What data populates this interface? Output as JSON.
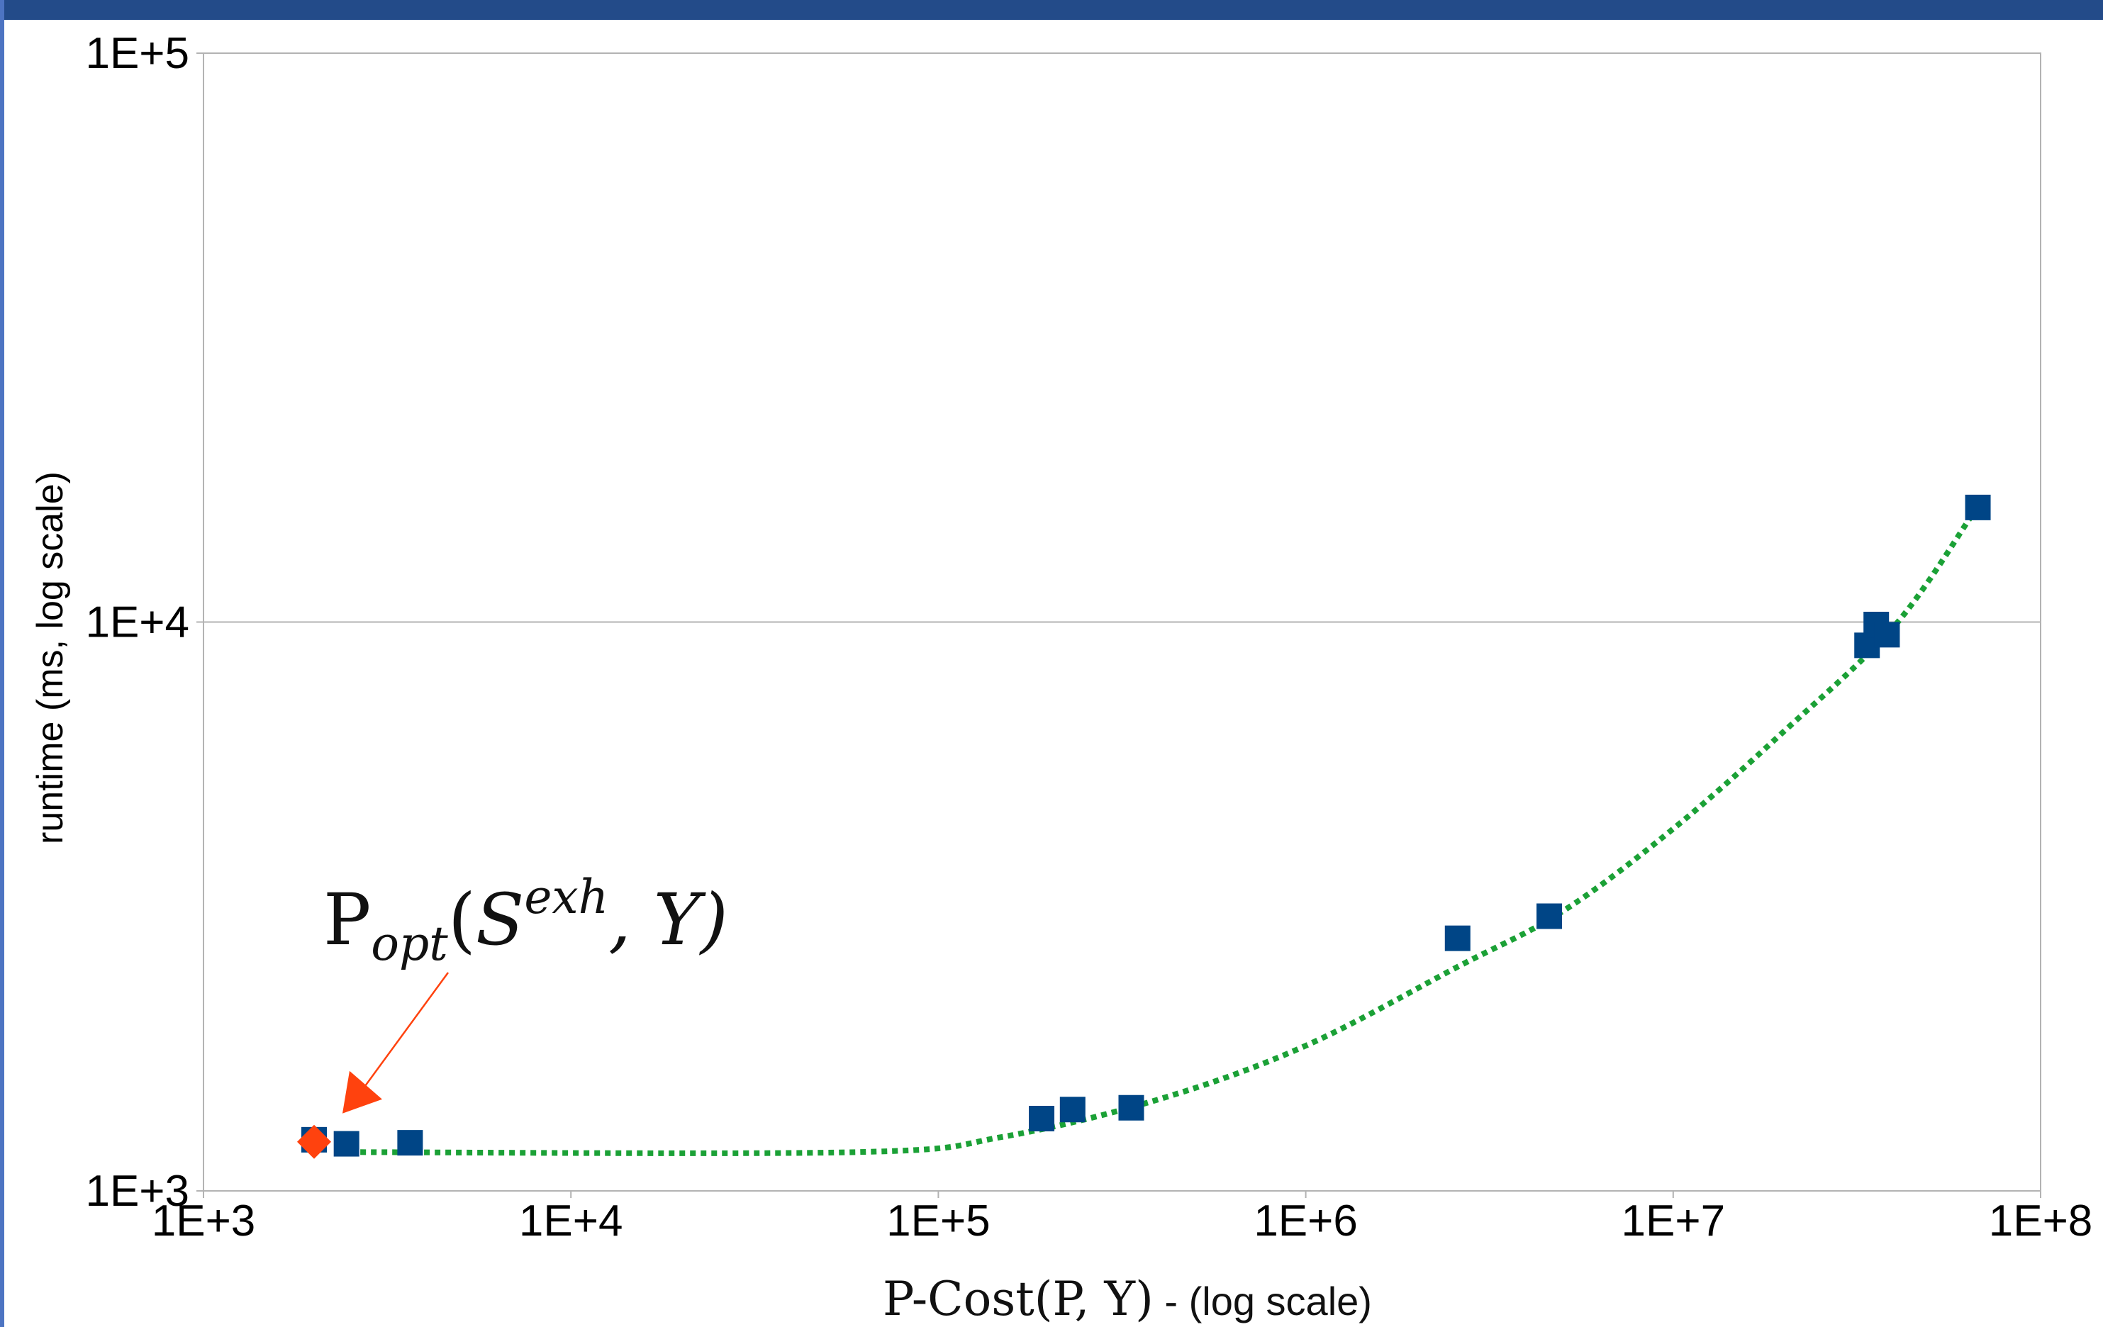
{
  "chart_data": {
    "type": "scatter",
    "x_scale": "log",
    "y_scale": "log",
    "xlim": [
      1000,
      100000000
    ],
    "ylim": [
      1000,
      100000
    ],
    "x_ticks": [
      "1E+3",
      "1E+4",
      "1E+5",
      "1E+6",
      "1E+7",
      "1E+8"
    ],
    "y_ticks": [
      "1E+3",
      "1E+4",
      "1E+5"
    ],
    "xlabel_main": "P-Cost(P, Y)",
    "xlabel_suffix": " - (log scale)",
    "ylabel": "runtime (ms, log scale)",
    "grid": "horizontal",
    "series": [
      {
        "marker": "square",
        "color": "#004586",
        "points": [
          {
            "x": 2000,
            "y": 1230
          },
          {
            "x": 2450,
            "y": 1210
          },
          {
            "x": 3650,
            "y": 1215
          },
          {
            "x": 191000,
            "y": 1340
          },
          {
            "x": 232000,
            "y": 1390
          },
          {
            "x": 335000,
            "y": 1400
          },
          {
            "x": 2590000,
            "y": 2780
          },
          {
            "x": 4600000,
            "y": 3040
          },
          {
            "x": 33700000,
            "y": 9100
          },
          {
            "x": 35700000,
            "y": 9900
          },
          {
            "x": 38200000,
            "y": 9500
          },
          {
            "x": 67500000,
            "y": 15900
          }
        ]
      },
      {
        "marker": "diamond",
        "color": "#ff420e",
        "points": [
          {
            "x": 2000,
            "y": 1220
          }
        ]
      }
    ],
    "trendline": {
      "style": "dotted",
      "color": "#1ba136",
      "points": [
        {
          "x": 2500,
          "y": 1170
        },
        {
          "x": 60000,
          "y": 1170
        },
        {
          "x": 150000,
          "y": 1245
        },
        {
          "x": 400000,
          "y": 1450
        },
        {
          "x": 1000000,
          "y": 1800
        },
        {
          "x": 2600000,
          "y": 2480
        },
        {
          "x": 5000000,
          "y": 3100
        },
        {
          "x": 10000000,
          "y": 4330
        },
        {
          "x": 20000000,
          "y": 6420
        },
        {
          "x": 40000000,
          "y": 9840
        },
        {
          "x": 65000000,
          "y": 15400
        }
      ]
    },
    "annotation": {
      "base": "P",
      "sub": "opt",
      "open": "(",
      "s": "S",
      "sup": "exh",
      "rest": ", Y)",
      "target": {
        "x": 2000,
        "y": 1220
      },
      "arrow_color": "#ff420e"
    }
  }
}
